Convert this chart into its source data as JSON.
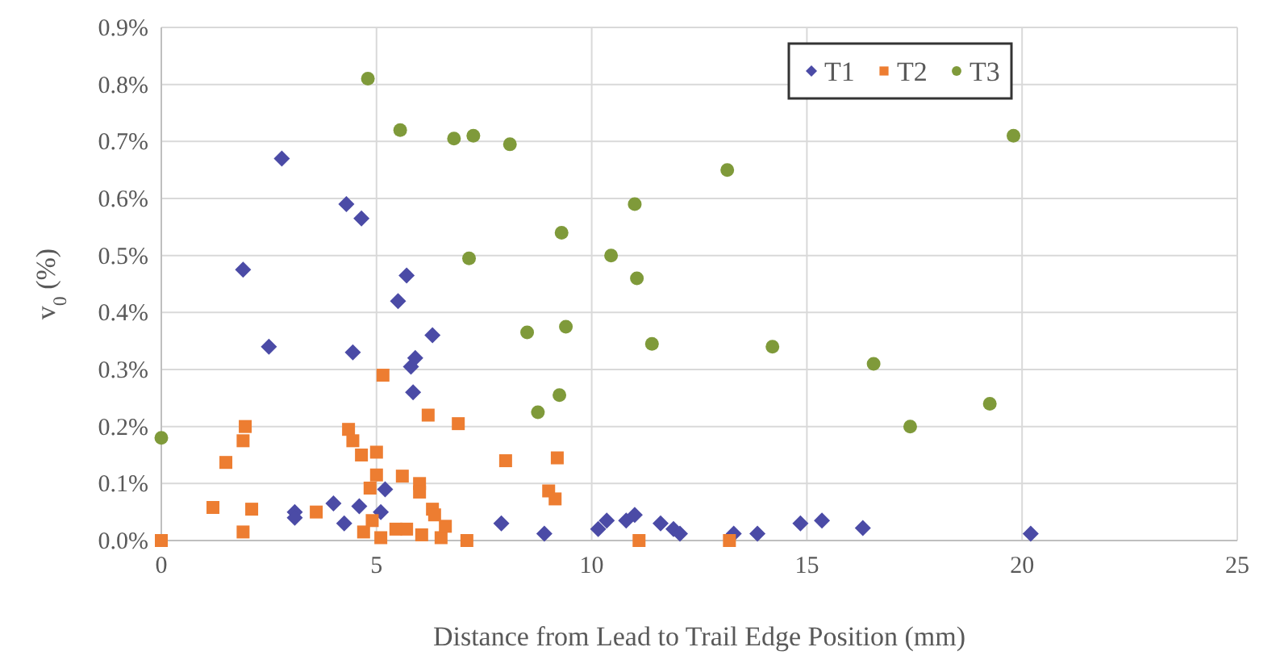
{
  "chart_data": {
    "type": "scatter",
    "xlabel": "Distance from Lead to Trail Edge Position (mm)",
    "ylabel": "v$_{0}$ (%)",
    "xlim": [
      0,
      25
    ],
    "xticks": [
      0,
      5,
      10,
      15,
      20,
      25
    ],
    "ylim": [
      0,
      0.9
    ],
    "yticks": [
      {
        "value": 0,
        "label": "0.0%"
      },
      {
        "value": 0.1,
        "label": "0.1%"
      },
      {
        "value": 0.2,
        "label": "0.2%"
      },
      {
        "value": 0.3,
        "label": "0.3%"
      },
      {
        "value": 0.4,
        "label": "0.4%"
      },
      {
        "value": 0.5,
        "label": "0.5%"
      },
      {
        "value": 0.6,
        "label": "0.6%"
      },
      {
        "value": 0.7,
        "label": "0.7%"
      },
      {
        "value": 0.8,
        "label": "0.8%"
      },
      {
        "value": 0.9,
        "label": "0.9%"
      }
    ],
    "grid": true,
    "legend": "top right",
    "series": [
      {
        "name": "T1",
        "color": "#4b4ba6",
        "marker": "diamond",
        "x": [
          2.8,
          1.9,
          2.5,
          4.3,
          4.65,
          5.7,
          5.5,
          6.3,
          4.45,
          5.9,
          5.8,
          5.85,
          5.2,
          4.0,
          4.6,
          3.1,
          3.1,
          4.25,
          5.1,
          7.9,
          8.9,
          10.15,
          10.35,
          10.8,
          11.0,
          11.6,
          11.9,
          12.05,
          13.3,
          13.85,
          14.85,
          15.35,
          16.3,
          20.2
        ],
        "values": [
          0.67,
          0.475,
          0.34,
          0.59,
          0.565,
          0.465,
          0.42,
          0.36,
          0.33,
          0.32,
          0.305,
          0.26,
          0.09,
          0.065,
          0.06,
          0.05,
          0.04,
          0.03,
          0.05,
          0.03,
          0.012,
          0.02,
          0.035,
          0.035,
          0.045,
          0.03,
          0.02,
          0.012,
          0.012,
          0.012,
          0.03,
          0.035,
          0.022,
          0.012
        ]
      },
      {
        "name": "T2",
        "color": "#ed7d31",
        "marker": "square",
        "x": [
          0,
          1.2,
          1.5,
          1.95,
          1.9,
          2.1,
          1.9,
          3.6,
          4.35,
          4.45,
          4.65,
          5.0,
          5.15,
          6.2,
          6.9,
          5.0,
          4.85,
          5.6,
          6.0,
          6.0,
          6.3,
          6.35,
          8.0,
          4.7,
          5.1,
          5.45,
          5.7,
          6.05,
          6.5,
          6.6,
          7.1,
          4.9,
          9.2,
          9.0,
          9.15,
          11.1,
          13.2
        ],
        "values": [
          0,
          0.058,
          0.137,
          0.2,
          0.175,
          0.055,
          0.015,
          0.05,
          0.195,
          0.175,
          0.15,
          0.155,
          0.29,
          0.22,
          0.205,
          0.115,
          0.092,
          0.113,
          0.1,
          0.085,
          0.055,
          0.045,
          0.14,
          0.015,
          0.005,
          0.02,
          0.02,
          0.01,
          0.005,
          0.025,
          0,
          0.035,
          0.145,
          0.087,
          0.073,
          0,
          0
        ]
      },
      {
        "name": "T3",
        "color": "#7f9a3a",
        "marker": "circle",
        "x": [
          0,
          4.8,
          5.55,
          6.8,
          7.25,
          8.1,
          7.15,
          13.15,
          11.0,
          9.3,
          10.45,
          11.05,
          8.5,
          9.4,
          11.4,
          14.2,
          16.55,
          8.75,
          9.25,
          19.8,
          19.25,
          17.4
        ],
        "values": [
          0.18,
          0.81,
          0.72,
          0.705,
          0.71,
          0.695,
          0.495,
          0.65,
          0.59,
          0.54,
          0.5,
          0.46,
          0.365,
          0.375,
          0.345,
          0.34,
          0.31,
          0.225,
          0.255,
          0.71,
          0.24,
          0.2
        ]
      }
    ]
  }
}
